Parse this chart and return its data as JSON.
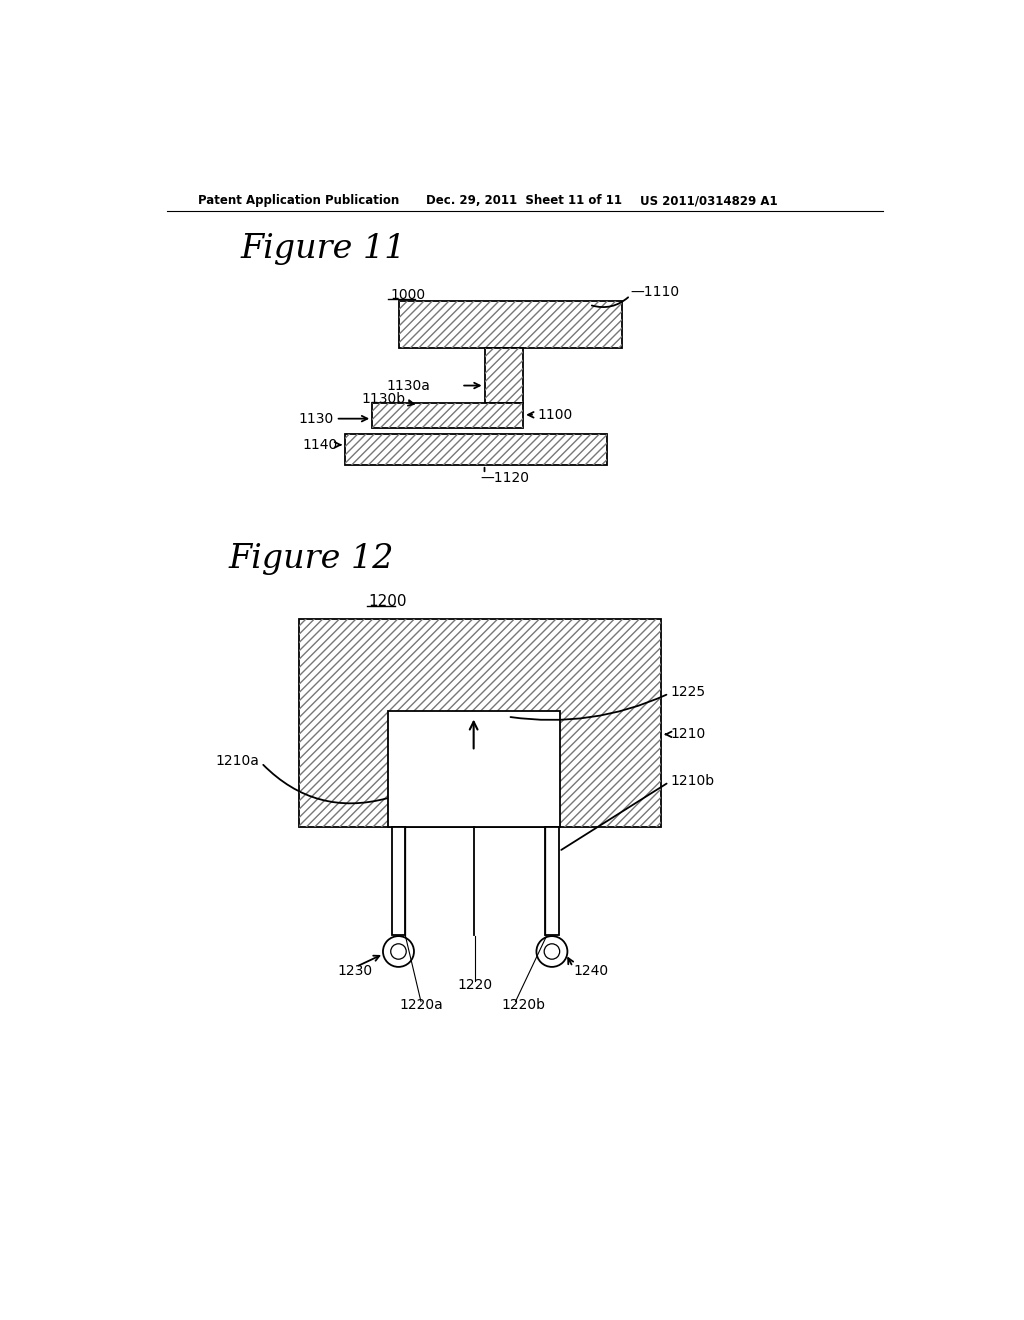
{
  "background_color": "#ffffff",
  "header_text1": "Patent Application Publication",
  "header_text2": "Dec. 29, 2011  Sheet 11 of 11",
  "header_text3": "US 2011/0314829 A1",
  "fig11_title": "Figure 11",
  "fig12_title": "Figure 12",
  "fig11_label": "1000",
  "fig12_label": "1200",
  "line_color": "#000000",
  "hatch_color": "#777777",
  "hatch_pattern": "////",
  "label_fontsize": 10,
  "title_fontsize": 24
}
